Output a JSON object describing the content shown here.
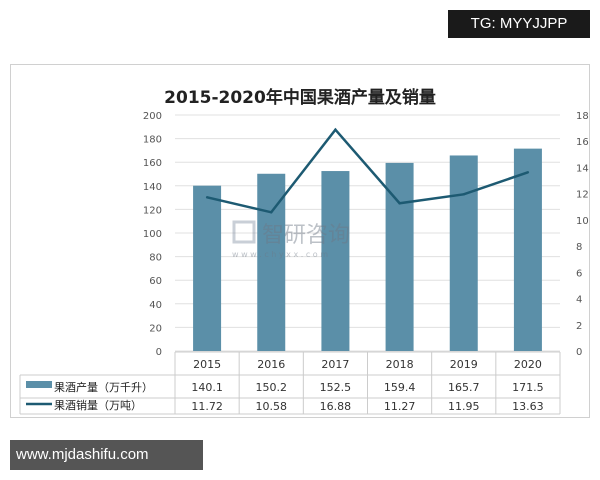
{
  "overlay": {
    "tg_label": "TG: MYYJJPP",
    "site_label": "www.mjdashifu.com"
  },
  "watermark": {
    "name": "智研咨询",
    "url": "w w w . c h y x x . c o m"
  },
  "chart_data": {
    "type": "bar+line",
    "title": "2015-2020年中国果酒产量及销量",
    "categories": [
      "2015",
      "2016",
      "2017",
      "2018",
      "2019",
      "2020"
    ],
    "series": [
      {
        "name": "果酒产量（万千升）",
        "type": "bar",
        "axis": "left",
        "values": [
          140.1,
          150.2,
          152.5,
          159.4,
          165.7,
          171.5
        ],
        "color": "#5b8fa8"
      },
      {
        "name": "果酒销量（万吨）",
        "type": "line",
        "axis": "right",
        "values": [
          11.72,
          10.58,
          16.88,
          11.27,
          11.95,
          13.63
        ],
        "color": "#1d5a72"
      }
    ],
    "left_axis": {
      "ylim": [
        0,
        200
      ],
      "ticks": [
        "0",
        "20",
        "40",
        "60",
        "80",
        "100",
        "120",
        "140",
        "160",
        "180",
        "200"
      ]
    },
    "right_axis": {
      "ylim": [
        0,
        18
      ],
      "ticks": [
        "0",
        "2",
        "4",
        "6",
        "8",
        "10",
        "12",
        "14",
        "16",
        "18"
      ]
    },
    "grid": true,
    "legend": "data-table-bottom"
  }
}
